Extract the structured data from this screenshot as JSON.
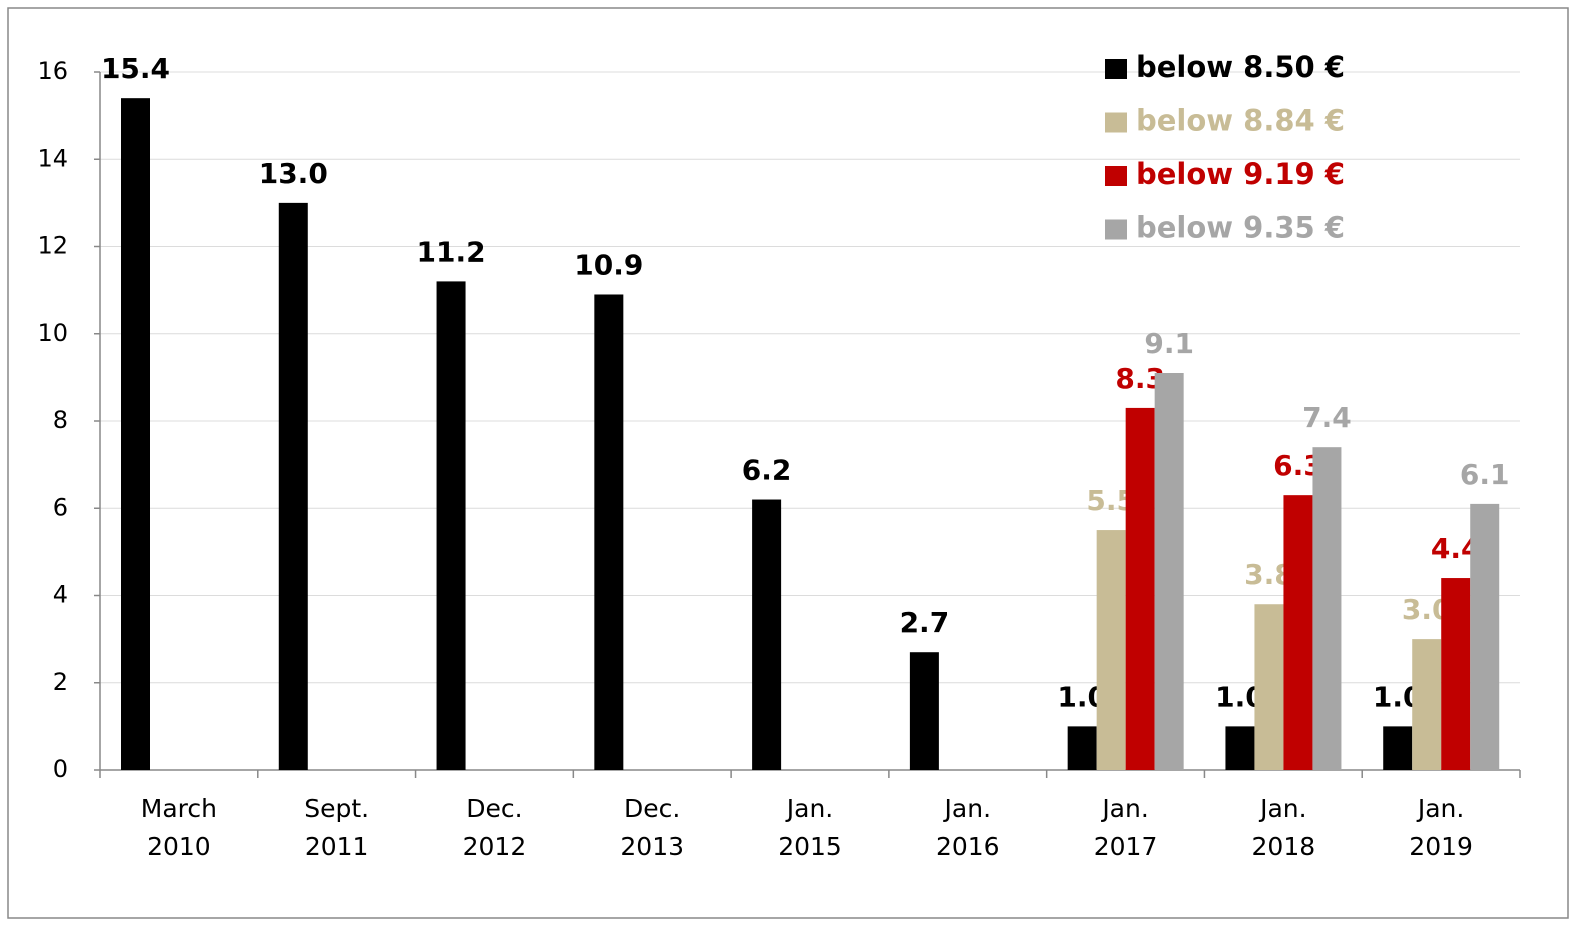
{
  "chart_data": {
    "type": "bar",
    "categories": [
      [
        "March",
        "2010"
      ],
      [
        "Sept.",
        "2011"
      ],
      [
        "Dec.",
        "2012"
      ],
      [
        "Dec.",
        "2013"
      ],
      [
        "Jan.",
        "2015"
      ],
      [
        "Jan.",
        "2016"
      ],
      [
        "Jan.",
        "2017"
      ],
      [
        "Jan.",
        "2018"
      ],
      [
        "Jan.",
        "2019"
      ]
    ],
    "series": [
      {
        "name": "below 8.50 €",
        "color": "#000000",
        "values": [
          15.4,
          13.0,
          11.2,
          10.9,
          6.2,
          2.7,
          1.0,
          1.0,
          1.0
        ],
        "value_labels": [
          "15.4",
          "13.0",
          "11.2",
          "10.9",
          "6.2",
          "2.7",
          "1.0",
          "1.0",
          "1.0"
        ]
      },
      {
        "name": "below 8.84 €",
        "color": "#c8bc96",
        "values": [
          null,
          null,
          null,
          null,
          null,
          null,
          5.5,
          3.8,
          3.0
        ],
        "value_labels": [
          null,
          null,
          null,
          null,
          null,
          null,
          "5.5",
          "3.8",
          "3.0"
        ]
      },
      {
        "name": "below 9.19 €",
        "color": "#c00000",
        "values": [
          null,
          null,
          null,
          null,
          null,
          null,
          8.3,
          6.3,
          4.4
        ],
        "value_labels": [
          null,
          null,
          null,
          null,
          null,
          null,
          "8.3",
          "6.3",
          "4.4"
        ]
      },
      {
        "name": "below 9.35 €",
        "color": "#a6a6a6",
        "values": [
          null,
          null,
          null,
          null,
          null,
          null,
          9.1,
          7.4,
          6.1
        ],
        "value_labels": [
          null,
          null,
          null,
          null,
          null,
          null,
          "9.1",
          "7.4",
          "6.1"
        ]
      }
    ],
    "ylim": [
      0,
      16
    ],
    "yticks": [
      0,
      2,
      4,
      6,
      8,
      10,
      12,
      14,
      16
    ],
    "grid": true,
    "legend": "top-right"
  }
}
